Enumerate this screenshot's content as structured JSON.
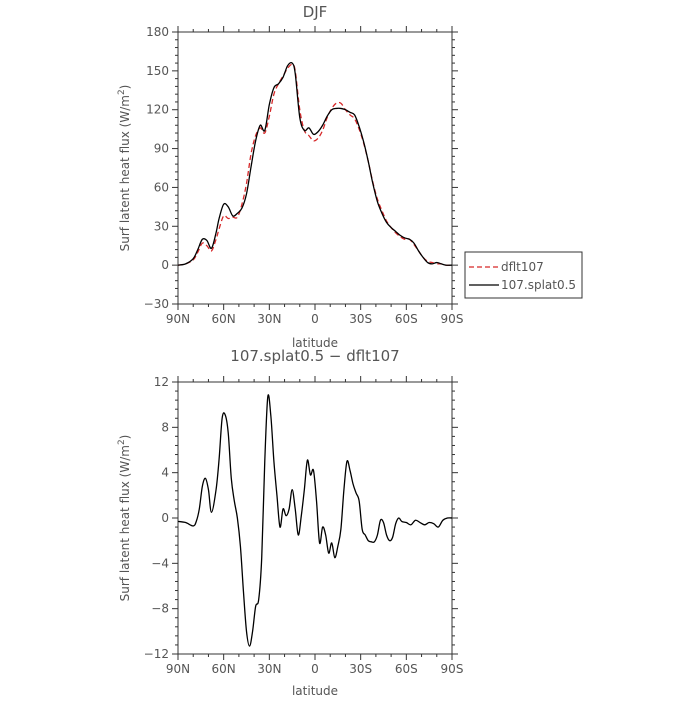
{
  "chart_data": [
    {
      "type": "line",
      "title": "DJF",
      "xlabel": "latitude",
      "ylabel": "Surf latent heat flux (W/m",
      "ylabel_sup": "2",
      "ylabel_close": ")",
      "xlim": [
        90,
        -90
      ],
      "ylim": [
        -30,
        180
      ],
      "xticks": [
        90,
        60,
        30,
        0,
        -30,
        -60,
        -90
      ],
      "xtick_labels": [
        "90N",
        "60N",
        "30N",
        "0",
        "30S",
        "60S",
        "90S"
      ],
      "yticks": [
        -30,
        0,
        30,
        60,
        90,
        120,
        150,
        180
      ],
      "ytick_labels": [
        "−30",
        "0",
        "30",
        "60",
        "90",
        "120",
        "150",
        "180"
      ],
      "legend_position": "right",
      "series": [
        {
          "name": "dflt107",
          "color": "#d62728",
          "dash": "dashed",
          "x": [
            90,
            85,
            80,
            77,
            74,
            71,
            68,
            65,
            63,
            60,
            57,
            54,
            51,
            48,
            45,
            42,
            39,
            36,
            33,
            30,
            27,
            24,
            21,
            18,
            15,
            13,
            10,
            7,
            4,
            1,
            -2,
            -5,
            -8,
            -11,
            -14,
            -17,
            -20,
            -23,
            -26,
            -29,
            -32,
            -35,
            -38,
            -41,
            -44,
            -47,
            -50,
            -53,
            -56,
            -59,
            -62,
            -65,
            -68,
            -71,
            -74,
            -77,
            -80,
            -83,
            -86,
            -90
          ],
          "y": [
            0,
            1,
            4,
            10,
            17,
            15,
            11,
            20,
            28,
            38,
            36,
            37,
            37,
            47,
            63,
            86,
            100,
            106,
            102,
            115,
            132,
            140,
            146,
            152,
            155,
            150,
            120,
            104,
            100,
            96,
            98,
            104,
            114,
            121,
            125,
            125,
            120,
            116,
            113,
            105,
            94,
            80,
            64,
            51,
            42,
            34,
            29,
            25,
            22,
            20,
            20,
            16,
            11,
            6,
            3,
            2,
            1,
            1,
            0,
            0
          ]
        },
        {
          "name": "107.splat0.5",
          "color": "#000000",
          "dash": "solid",
          "x": [
            90,
            85,
            80,
            77,
            74,
            71,
            68,
            65,
            63,
            60,
            57,
            54,
            51,
            48,
            45,
            42,
            39,
            36,
            33,
            30,
            27,
            24,
            21,
            18,
            15,
            13,
            10,
            7,
            4,
            1,
            -2,
            -5,
            -8,
            -11,
            -14,
            -17,
            -20,
            -23,
            -26,
            -29,
            -32,
            -35,
            -38,
            -41,
            -44,
            -47,
            -50,
            -53,
            -56,
            -59,
            -62,
            -65,
            -68,
            -71,
            -74,
            -77,
            -80,
            -83,
            -86,
            -90
          ],
          "y": [
            0,
            1,
            5,
            12,
            20,
            19,
            13,
            25,
            36,
            47,
            45,
            38,
            40,
            44,
            55,
            76,
            96,
            108,
            104,
            124,
            137,
            140,
            145,
            154,
            156,
            148,
            114,
            104,
            106,
            101,
            103,
            108,
            115,
            120,
            121,
            121,
            120,
            118,
            116,
            107,
            95,
            80,
            63,
            49,
            40,
            33,
            29,
            26,
            23,
            21,
            20,
            17,
            11,
            6,
            2,
            1,
            2,
            1,
            0,
            0
          ]
        }
      ]
    },
    {
      "type": "line",
      "title": "107.splat0.5 − dflt107",
      "xlabel": "latitude",
      "ylabel": "Surf latent heat flux (W/m",
      "ylabel_sup": "2",
      "ylabel_close": ")",
      "xlim": [
        90,
        -90
      ],
      "ylim": [
        -12,
        12
      ],
      "xticks": [
        90,
        60,
        30,
        0,
        -30,
        -60,
        -90
      ],
      "xtick_labels": [
        "90N",
        "60N",
        "30N",
        "0",
        "30S",
        "60S",
        "90S"
      ],
      "yticks": [
        -12,
        -8,
        -4,
        0,
        4,
        8,
        12
      ],
      "ytick_labels": [
        "−12",
        "−8",
        "−4",
        "0",
        "4",
        "8",
        "12"
      ],
      "series": [
        {
          "color": "#000000",
          "dash": "solid",
          "x": [
            90,
            85,
            80,
            78,
            76,
            74,
            72,
            70,
            68,
            65,
            63,
            61,
            59,
            57,
            55,
            53,
            51,
            49,
            47,
            45,
            43,
            41,
            39,
            37,
            35,
            33,
            31,
            29,
            27,
            25,
            23,
            21,
            19,
            17,
            15,
            13,
            11,
            9,
            7,
            5,
            3,
            1,
            -1,
            -3,
            -5,
            -7,
            -9,
            -11,
            -13,
            -15,
            -17,
            -19,
            -21,
            -23,
            -25,
            -27,
            -29,
            -31,
            -33,
            -35,
            -37,
            -39,
            -41,
            -43,
            -45,
            -47,
            -49,
            -51,
            -53,
            -55,
            -57,
            -60,
            -63,
            -66,
            -69,
            -72,
            -75,
            -78,
            -81,
            -84,
            -87,
            -90
          ],
          "y": [
            -0.3,
            -0.4,
            -0.7,
            -0.3,
            0.8,
            2.8,
            3.5,
            2.5,
            0.5,
            2.5,
            5.2,
            8.8,
            9.1,
            7.5,
            3.5,
            1.5,
            0,
            -2.5,
            -6.5,
            -10,
            -11.3,
            -10,
            -7.8,
            -7.2,
            -3.5,
            5,
            10.7,
            9,
            5,
            2,
            -0.8,
            0.8,
            0.2,
            0.8,
            2.5,
            0.8,
            -1.5,
            0.2,
            2.5,
            5.1,
            3.8,
            4.2,
            1.5,
            -2.2,
            -0.8,
            -1.5,
            -3.1,
            -2.2,
            -3.5,
            -2.5,
            -1,
            2.5,
            5,
            4.2,
            3,
            2.2,
            1.5,
            -1,
            -1.5,
            -2,
            -2.1,
            -2.1,
            -1.5,
            -0.2,
            -0.4,
            -1.5,
            -2,
            -1.7,
            -0.5,
            0,
            -0.3,
            -0.4,
            -0.6,
            -0.2,
            -0.4,
            -0.6,
            -0.4,
            -0.5,
            -0.8,
            -0.2,
            0,
            0
          ]
        }
      ]
    }
  ]
}
